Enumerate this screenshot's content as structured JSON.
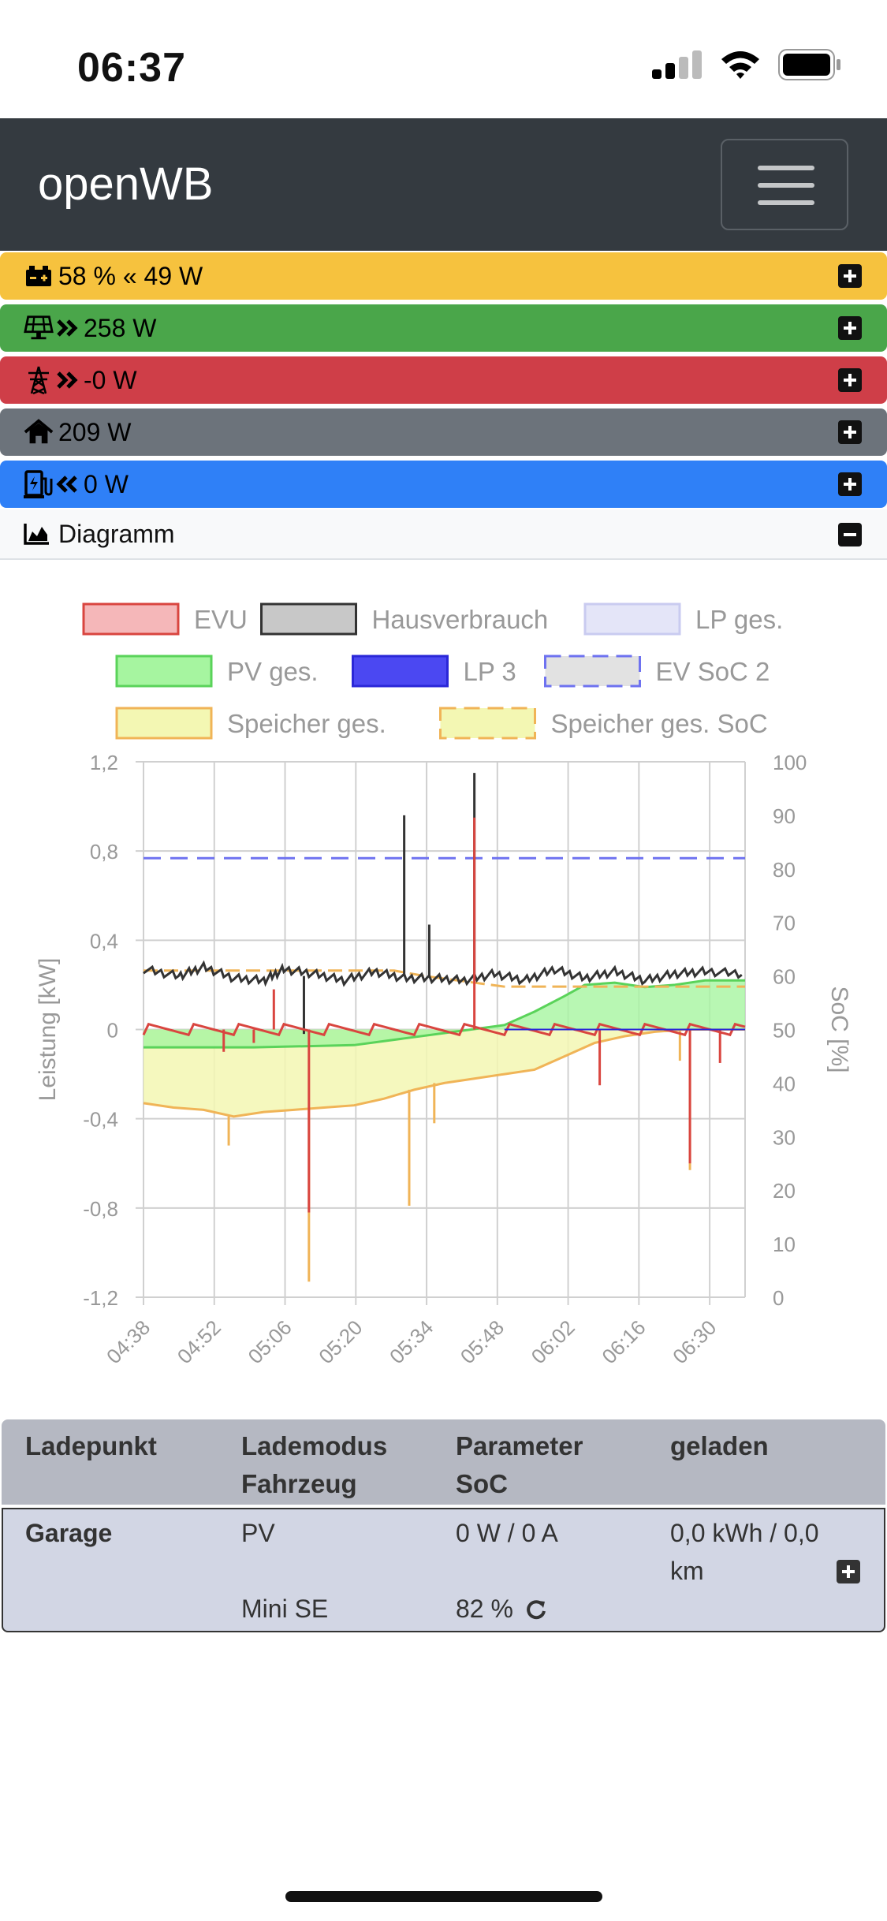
{
  "status_bar": {
    "time": "06:37"
  },
  "navbar": {
    "brand": "openWB"
  },
  "overview": [
    {
      "icon": "battery-icon",
      "direction_icon": "double-chevron-left-icon",
      "text": "58 % « 49 W",
      "soc": "58 %",
      "power": "49 W",
      "color": "#f6c23e"
    },
    {
      "icon": "solar-panel-icon",
      "direction_icon": "double-chevron-right-icon",
      "power": "258 W",
      "color": "#4aa64a"
    },
    {
      "icon": "power-pylon-icon",
      "direction_icon": "double-chevron-right-icon",
      "power": "-0 W",
      "color": "#cf3e48"
    },
    {
      "icon": "house-icon",
      "power": "209 W",
      "color": "#6c737b"
    },
    {
      "icon": "charging-station-icon",
      "direction_icon": "double-chevron-left-icon",
      "power": "0 W",
      "color": "#2f80f7"
    }
  ],
  "diagram": {
    "label": "Diagramm",
    "icon": "area-chart-icon"
  },
  "chart_data": {
    "type": "line",
    "legend": [
      {
        "name": "EVU",
        "fill": "#f5b7b9",
        "stroke": "#d9453f",
        "dash": false
      },
      {
        "name": "Hausverbrauch",
        "fill": "#c8c8c8",
        "stroke": "#333333",
        "dash": false
      },
      {
        "name": "LP ges.",
        "fill": "#e4e5f8",
        "stroke": "#c9cbf0",
        "dash": false
      },
      {
        "name": "PV ges.",
        "fill": "#a6f5a0",
        "stroke": "#5ad35a",
        "dash": false
      },
      {
        "name": "LP 3",
        "fill": "#4b48f2",
        "stroke": "#2a27d8",
        "dash": false
      },
      {
        "name": "EV SoC 2",
        "fill": "#e2e2e2",
        "stroke": "#6e72f0",
        "dash": true
      },
      {
        "name": "Speicher ges.",
        "fill": "#f3f7b3",
        "stroke": "#f0b457",
        "dash": false
      },
      {
        "name": "Speicher ges. SoC",
        "fill": "#f3f7b3",
        "stroke": "#f0b457",
        "dash": true
      }
    ],
    "legend_position": "top",
    "y_left_label": "Leistung [kW]",
    "y_left_ticks": [
      "1,2",
      "0,8",
      "0,4",
      "0",
      "-0,4",
      "-0,8",
      "-1,2"
    ],
    "y_left_range": [
      -1.2,
      1.2
    ],
    "y_right_label": "SoC [%]",
    "y_right_ticks": [
      "100",
      "90",
      "80",
      "70",
      "60",
      "50",
      "40",
      "30",
      "20",
      "10",
      "0"
    ],
    "y_right_range": [
      0,
      100
    ],
    "x_ticks": [
      "04:38",
      "04:52",
      "05:06",
      "05:20",
      "05:34",
      "05:48",
      "06:02",
      "06:16",
      "06:30"
    ],
    "x_range_minutes": [
      278,
      398
    ],
    "grid": true,
    "series": [
      {
        "name": "Hausverbrauch",
        "x": [
          278,
          285,
          290,
          296,
          302,
          306,
          312,
          318,
          324,
          330,
          336,
          342,
          348,
          354,
          360,
          366,
          372,
          378,
          384,
          390,
          398
        ],
        "y": [
          0.27,
          0.24,
          0.28,
          0.23,
          0.22,
          0.27,
          0.25,
          0.22,
          0.26,
          0.23,
          0.23,
          0.22,
          0.25,
          0.22,
          0.27,
          0.23,
          0.26,
          0.22,
          0.25,
          0.26,
          0.25
        ],
        "spikes": [
          {
            "x": 310,
            "y": -0.02
          },
          {
            "x": 330,
            "y": 0.96
          },
          {
            "x": 335,
            "y": 0.47
          },
          {
            "x": 344,
            "y": 1.15
          }
        ]
      },
      {
        "name": "EVU",
        "x": [
          278,
          398
        ],
        "y": [
          0.01,
          0.0
        ],
        "spikes": [
          {
            "x": 294,
            "y": -0.1
          },
          {
            "x": 300,
            "y": -0.06
          },
          {
            "x": 311,
            "y": -0.82
          },
          {
            "x": 304,
            "y": 0.18
          },
          {
            "x": 344,
            "y": 0.95
          },
          {
            "x": 369,
            "y": -0.25
          },
          {
            "x": 387,
            "y": -0.6
          },
          {
            "x": 393,
            "y": -0.15
          }
        ]
      },
      {
        "name": "PV ges.",
        "x": [
          278,
          300,
          320,
          330,
          340,
          350,
          356,
          362,
          366,
          372,
          378,
          384,
          390,
          398
        ],
        "y": [
          -0.08,
          -0.08,
          -0.07,
          -0.04,
          -0.01,
          0.02,
          0.08,
          0.15,
          0.2,
          0.21,
          0.19,
          0.2,
          0.22,
          0.22
        ]
      },
      {
        "name": "Speicher ges.",
        "x": [
          278,
          284,
          290,
          296,
          302,
          308,
          314,
          320,
          326,
          332,
          338,
          344,
          350,
          356,
          362,
          368,
          374,
          380,
          386,
          392,
          398
        ],
        "y": [
          -0.33,
          -0.35,
          -0.36,
          -0.39,
          -0.37,
          -0.36,
          -0.35,
          -0.34,
          -0.31,
          -0.27,
          -0.24,
          -0.22,
          -0.2,
          -0.18,
          -0.12,
          -0.06,
          -0.03,
          -0.01,
          0.0,
          0.0,
          0.0
        ],
        "spikes": [
          {
            "x": 295,
            "y": -0.52
          },
          {
            "x": 311,
            "y": -1.13
          },
          {
            "x": 331,
            "y": -0.79
          },
          {
            "x": 336,
            "y": -0.42
          },
          {
            "x": 387,
            "y": -0.63
          },
          {
            "x": 385,
            "y": -0.14
          }
        ]
      },
      {
        "name": "EV SoC 2",
        "axis": "right",
        "x": [
          278,
          398
        ],
        "y": [
          82,
          82
        ]
      },
      {
        "name": "Speicher ges. SoC",
        "axis": "right",
        "x": [
          278,
          328,
          334,
          342,
          350,
          356,
          398
        ],
        "y": [
          61,
          61,
          60,
          59,
          58,
          58,
          58
        ]
      }
    ]
  },
  "table": {
    "headers": [
      {
        "line1": "Ladepunkt",
        "line2": ""
      },
      {
        "line1": "Lademodus",
        "line2": "Fahrzeug"
      },
      {
        "line1": "Parameter",
        "line2": "SoC"
      },
      {
        "line1": "geladen",
        "line2": ""
      }
    ],
    "row": {
      "name": "Garage",
      "mode": "PV",
      "vehicle": "Mini SE",
      "parameter": "0 W / 0 A",
      "soc": "82 %",
      "charged_line1": "0,0 kWh / 0,0",
      "charged_line2": "km"
    }
  }
}
